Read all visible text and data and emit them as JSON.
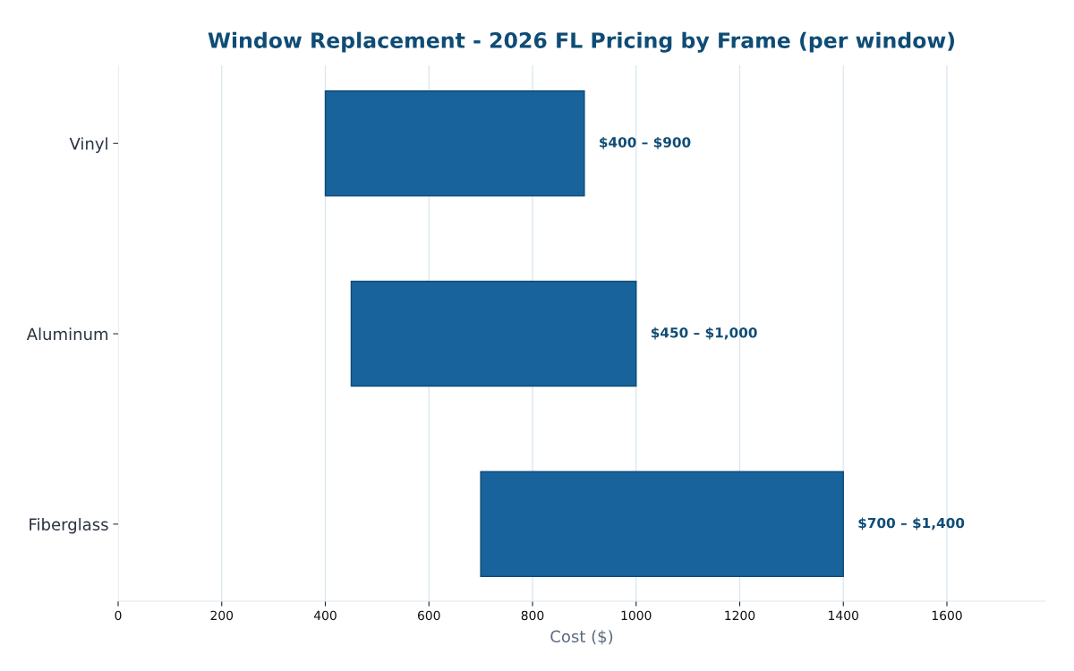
{
  "chart_data": {
    "type": "bar",
    "orientation": "horizontal",
    "title": "Window Replacement - 2026 FL Pricing by Frame (per window)",
    "xlabel": "Cost ($)",
    "categories": [
      "Vinyl",
      "Aluminum",
      "Fiberglass"
    ],
    "base": [
      400,
      450,
      700
    ],
    "values": [
      500,
      550,
      700
    ],
    "color": "#18639b",
    "annotations": [
      {
        "text": "$400 – $900",
        "x": 900,
        "y": "Vinyl"
      },
      {
        "text": "$450 – $1,000",
        "x": 1000,
        "y": "Aluminum"
      },
      {
        "text": "$700 – $1,400",
        "x": 1400,
        "y": "Fiberglass"
      }
    ],
    "xlim": [
      0,
      1790
    ],
    "xticks": [
      0,
      200,
      400,
      600,
      800,
      1000,
      1200,
      1400,
      1600
    ],
    "grid": "x"
  }
}
